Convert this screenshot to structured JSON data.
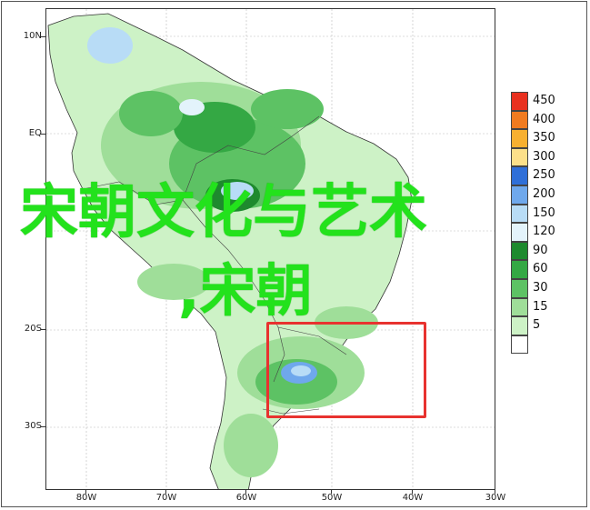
{
  "map": {
    "lat_labels": [
      "10N",
      "EQ",
      "20S",
      "30S"
    ],
    "lon_labels": [
      "80W",
      "70W",
      "60W",
      "50W",
      "40W",
      "30W"
    ]
  },
  "legend": {
    "items": [
      {
        "label": "450",
        "color": "#e8301f"
      },
      {
        "label": "400",
        "color": "#f07b20"
      },
      {
        "label": "350",
        "color": "#f7b030"
      },
      {
        "label": "300",
        "color": "#fce08a"
      },
      {
        "label": "250",
        "color": "#2f6fd8"
      },
      {
        "label": "200",
        "color": "#6fa8ec"
      },
      {
        "label": "150",
        "color": "#b8dcf6"
      },
      {
        "label": "120",
        "color": "#e3f3fb"
      },
      {
        "label": "90",
        "color": "#1e8a2e"
      },
      {
        "label": "60",
        "color": "#34a844"
      },
      {
        "label": "30",
        "color": "#5dc264"
      },
      {
        "label": "15",
        "color": "#9fde99"
      },
      {
        "label": "5",
        "color": "#cdf2c6"
      },
      {
        "label": "",
        "color": "#ffffff"
      }
    ]
  },
  "overlay": {
    "title": "宋朝文化与艺术",
    "subtitle": ",宋朝"
  },
  "colors": {
    "text_green": "#23e21c",
    "highlight_red": "#e8322f",
    "land_light": "#cdf2c6"
  }
}
